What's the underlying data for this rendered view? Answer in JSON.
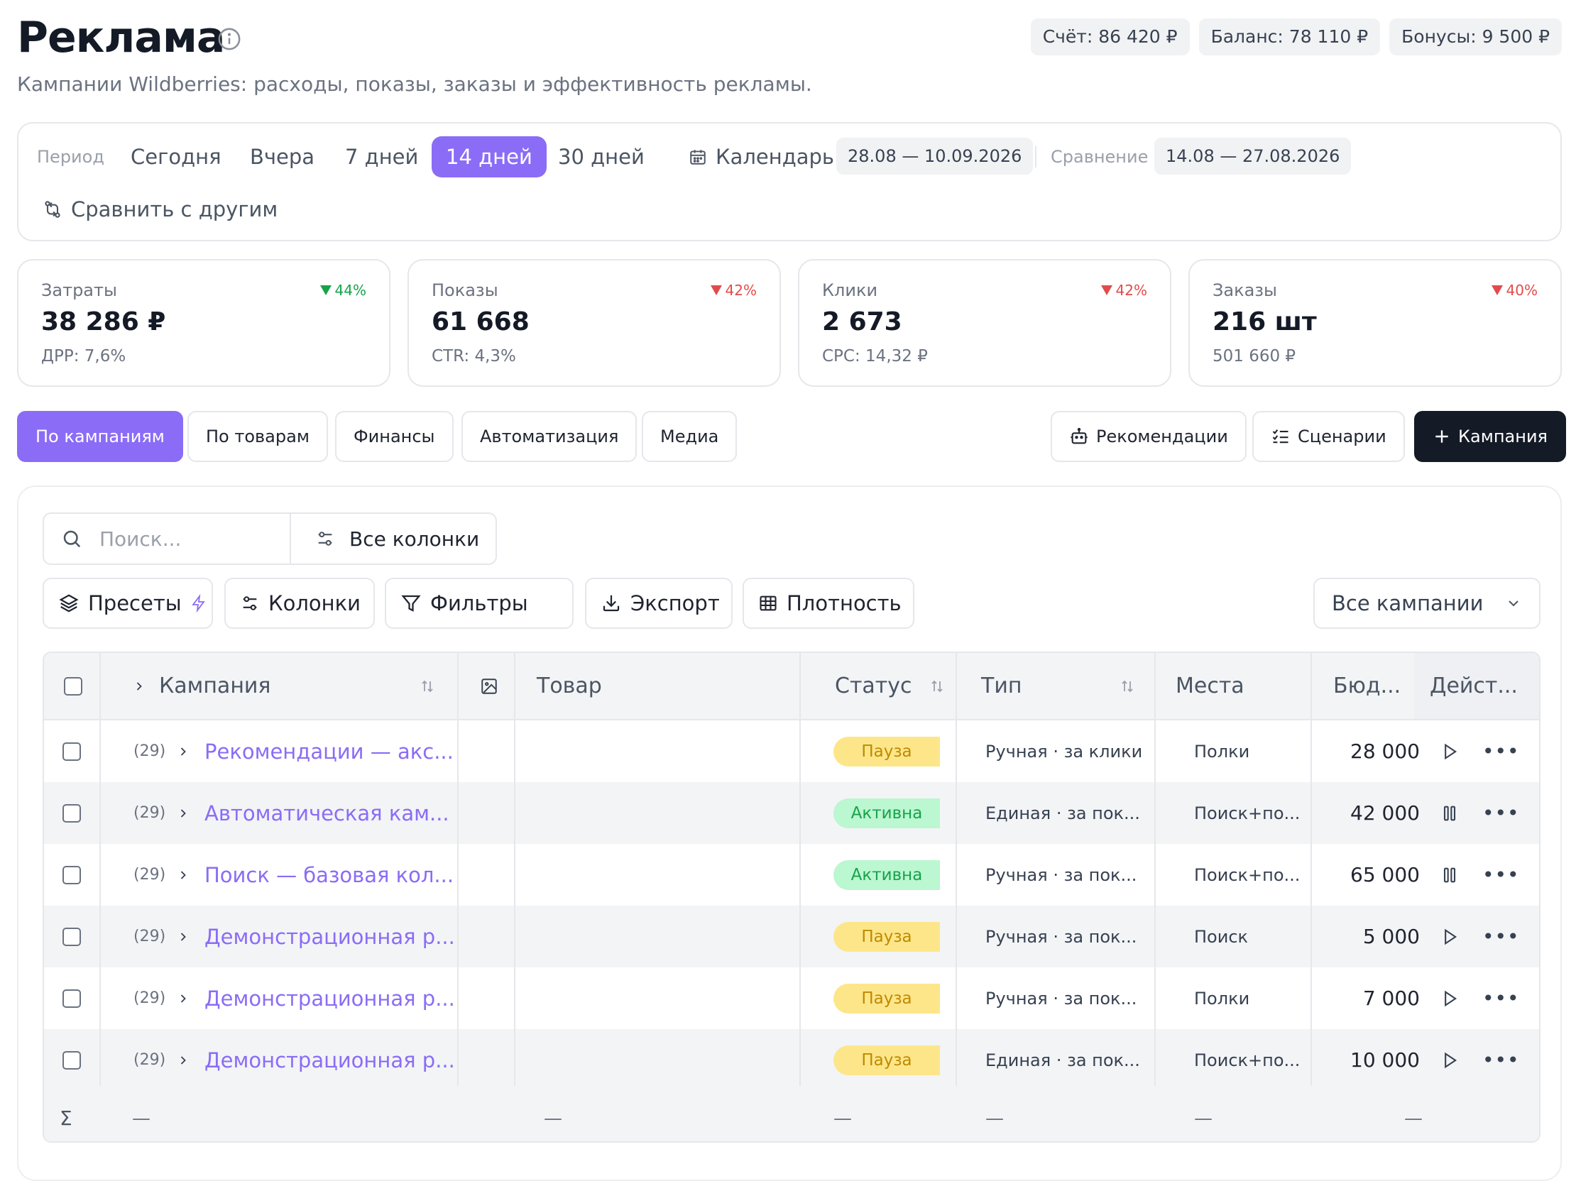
{
  "header": {
    "title": "Реклама",
    "subtitle": "Кампании Wildberries: расходы, показы, заказы и эффективность рекламы.",
    "pills": [
      "Счёт: 86 420 ₽",
      "Баланс: 78 110 ₽",
      "Бонусы: 9 500 ₽"
    ]
  },
  "period": {
    "label": "Период",
    "options": [
      "Сегодня",
      "Вчера",
      "7 дней",
      "14 дней",
      "30 дней"
    ],
    "active": "14 дней",
    "calendar_label": "Календарь",
    "range": "28.08 — 10.09.2026",
    "compare_label": "Сравнение",
    "compare_range": "14.08 — 27.08.2026",
    "compare_other": "Сравнить с другим"
  },
  "kpis": [
    {
      "label": "Затраты",
      "value": "38 286 ₽",
      "sub": "ДРР: 7,6%",
      "delta": "44%",
      "direction": "up",
      "color": "#16a34a"
    },
    {
      "label": "Показы",
      "value": "61 668",
      "sub": "CTR: 4,3%",
      "delta": "42%",
      "direction": "down",
      "color": "#e24b4b"
    },
    {
      "label": "Клики",
      "value": "2 673",
      "sub": "CPC: 14,32 ₽",
      "delta": "42%",
      "direction": "down",
      "color": "#e24b4b"
    },
    {
      "label": "Заказы",
      "value": "216 шт",
      "sub": "501 660 ₽",
      "delta": "40%",
      "direction": "down",
      "color": "#e24b4b"
    }
  ],
  "tabs": [
    "По кампаниям",
    "По товарам",
    "Финансы",
    "Автоматизация",
    "Медиа"
  ],
  "actions": {
    "recommendations": "Рекомендации",
    "scenarios": "Сценарии",
    "new_campaign": "Кампания"
  },
  "toolbar": {
    "search_placeholder": "Поиск...",
    "all_columns": "Все колонки",
    "presets": "Пресеты",
    "columns": "Колонки",
    "filters": "Фильтры",
    "export": "Экспорт",
    "density": "Плотность",
    "campaign_filter": "Все кампании"
  },
  "table": {
    "headers": {
      "campaign": "Кампания",
      "product": "Товар",
      "status": "Статус",
      "type": "Тип",
      "places": "Места",
      "budget": "Бюд...",
      "actions": "Дейст..."
    },
    "rows": [
      {
        "count": "(29)",
        "name": "Рекомендации — акс...",
        "status": "Пауза",
        "status_kind": "pause",
        "type": "Ручная · за клики",
        "places": "Полки",
        "budget": "28 000",
        "action": "play"
      },
      {
        "count": "(29)",
        "name": "Автоматическая кам...",
        "status": "Активна",
        "status_kind": "active",
        "type": "Единая · за пок...",
        "places": "Поиск+по...",
        "budget": "42 000",
        "action": "pause"
      },
      {
        "count": "(29)",
        "name": "Поиск — базовая кол...",
        "status": "Активна",
        "status_kind": "active",
        "type": "Ручная · за пок...",
        "places": "Поиск+по...",
        "budget": "65 000",
        "action": "pause"
      },
      {
        "count": "(29)",
        "name": "Демонстрационная р...",
        "status": "Пауза",
        "status_kind": "pause",
        "type": "Ручная · за пок...",
        "places": "Поиск",
        "budget": "5 000",
        "action": "play"
      },
      {
        "count": "(29)",
        "name": "Демонстрационная р...",
        "status": "Пауза",
        "status_kind": "pause",
        "type": "Ручная · за пок...",
        "places": "Полки",
        "budget": "7 000",
        "action": "play"
      },
      {
        "count": "(29)",
        "name": "Демонстрационная р...",
        "status": "Пауза",
        "status_kind": "pause",
        "type": "Единая · за пок...",
        "places": "Поиск+по...",
        "budget": "10 000",
        "action": "play"
      }
    ],
    "footer": {
      "sigma": "Σ",
      "dash": "—"
    }
  }
}
